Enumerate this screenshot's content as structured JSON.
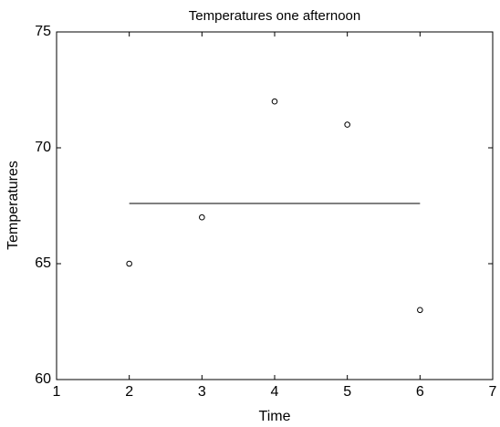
{
  "chart_data": {
    "type": "scatter",
    "title": "Temperatures one afternoon",
    "x_label": "Time",
    "y_label": "Temperatures",
    "series": [
      {
        "mode": "markers",
        "color": "#000000",
        "x": [
          2,
          3,
          4,
          5,
          6
        ],
        "values": [
          65,
          67,
          72,
          71,
          63
        ]
      },
      {
        "mode": "line",
        "color": "#000000",
        "x": [
          2,
          6
        ],
        "values": [
          67.6,
          67.6
        ]
      }
    ],
    "xlim": [
      1,
      7
    ],
    "xticks": [
      1,
      2,
      3,
      4,
      5,
      6,
      7
    ],
    "ylim": [
      60,
      75
    ],
    "yticks": [
      60,
      65,
      70,
      75
    ],
    "grid": false
  }
}
